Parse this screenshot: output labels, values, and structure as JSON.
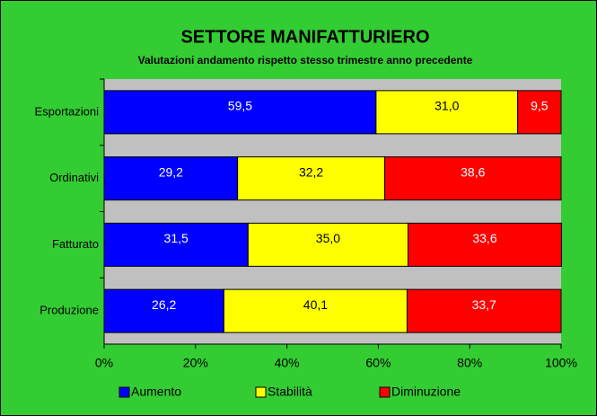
{
  "chart_data": {
    "type": "stacked_barh",
    "title": "SETTORE MANIFATTURIERO",
    "subtitle": "Valutazioni andamento rispetto stesso trimestre anno precedente",
    "categories": [
      "Esportazioni",
      "Ordinativi",
      "Fatturato",
      "Produzione"
    ],
    "series": [
      {
        "name": "Aumento",
        "color": "#0000ff",
        "values": [
          59.5,
          29.2,
          31.5,
          26.2
        ],
        "value_labels": [
          "59,5",
          "29,2",
          "31,5",
          "26,2"
        ]
      },
      {
        "name": "Stabilità",
        "color": "#ffff00",
        "values": [
          31.0,
          32.2,
          35.0,
          40.1
        ],
        "value_labels": [
          "31,0",
          "32,2",
          "35,0",
          "40,1"
        ]
      },
      {
        "name": "Diminuzione",
        "color": "#ff0000",
        "values": [
          9.5,
          38.6,
          33.6,
          33.7
        ],
        "value_labels": [
          "9,5",
          "38,6",
          "33,6",
          "33,7"
        ]
      }
    ],
    "xlim": [
      0,
      100
    ],
    "xticks": [
      {
        "value": 0,
        "label": "0%"
      },
      {
        "value": 20,
        "label": "20%"
      },
      {
        "value": 40,
        "label": "40%"
      },
      {
        "value": 60,
        "label": "60%"
      },
      {
        "value": 80,
        "label": "80%"
      },
      {
        "value": 100,
        "label": "100%"
      }
    ],
    "legend": "bottom"
  }
}
